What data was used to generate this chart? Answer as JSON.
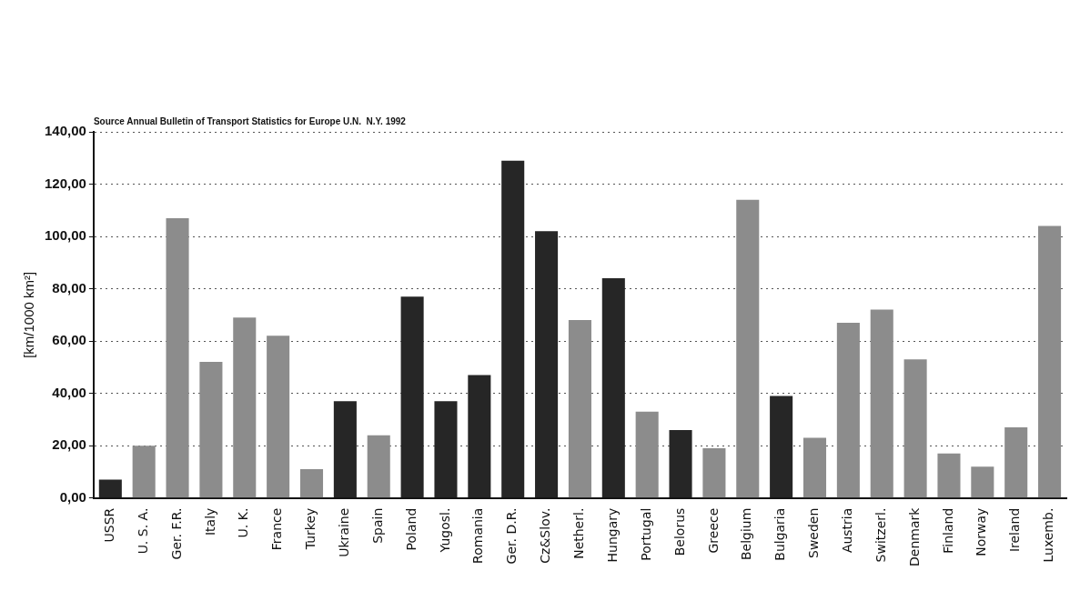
{
  "chart_data": {
    "type": "bar",
    "ylabel": "[km/1000 km²]",
    "annotations": [
      "Source Annual Bulletin of Transport Statistics for Europe U.N.  N.Y. 1992"
    ],
    "categories": [
      "USSR",
      "U. S. A.",
      "Ger. F.R.",
      "Italy",
      "U. K.",
      "France",
      "Turkey",
      "Ukraine",
      "Spain",
      "Poland",
      "Yugosl.",
      "Romania",
      "Ger. D.R.",
      "Cz&Slov.",
      "Netherl.",
      "Hungary",
      "Portugal",
      "Belorus",
      "Greece",
      "Belgium",
      "Bulgaria",
      "Sweden",
      "Austria",
      "Switzerl.",
      "Denmark",
      "Finland",
      "Norway",
      "Ireland",
      "Luxemb."
    ],
    "values": [
      7,
      20,
      107,
      52,
      69,
      62,
      11,
      37,
      24,
      77,
      37,
      47,
      129,
      102,
      68,
      84,
      33,
      26,
      19,
      114,
      39,
      23,
      67,
      72,
      53,
      17,
      12,
      27,
      104
    ],
    "colors": [
      "#262626",
      "#8c8c8c",
      "#8c8c8c",
      "#8c8c8c",
      "#8c8c8c",
      "#8c8c8c",
      "#8c8c8c",
      "#262626",
      "#8c8c8c",
      "#262626",
      "#262626",
      "#262626",
      "#262626",
      "#262626",
      "#8c8c8c",
      "#262626",
      "#8c8c8c",
      "#262626",
      "#8c8c8c",
      "#8c8c8c",
      "#262626",
      "#8c8c8c",
      "#8c8c8c",
      "#8c8c8c",
      "#8c8c8c",
      "#8c8c8c",
      "#8c8c8c",
      "#8c8c8c",
      "#8c8c8c"
    ],
    "ylim": [
      0,
      140
    ],
    "yticks": [
      {
        "value": 0,
        "label": "0,00"
      },
      {
        "value": 20,
        "label": "20,00"
      },
      {
        "value": 40,
        "label": "40,00"
      },
      {
        "value": 60,
        "label": "60,00"
      },
      {
        "value": 80,
        "label": "80,00"
      },
      {
        "value": 100,
        "label": "100,00"
      },
      {
        "value": 120,
        "label": "120,00"
      },
      {
        "value": 140,
        "label": "140,00"
      }
    ],
    "grid": "y",
    "legend": false
  }
}
